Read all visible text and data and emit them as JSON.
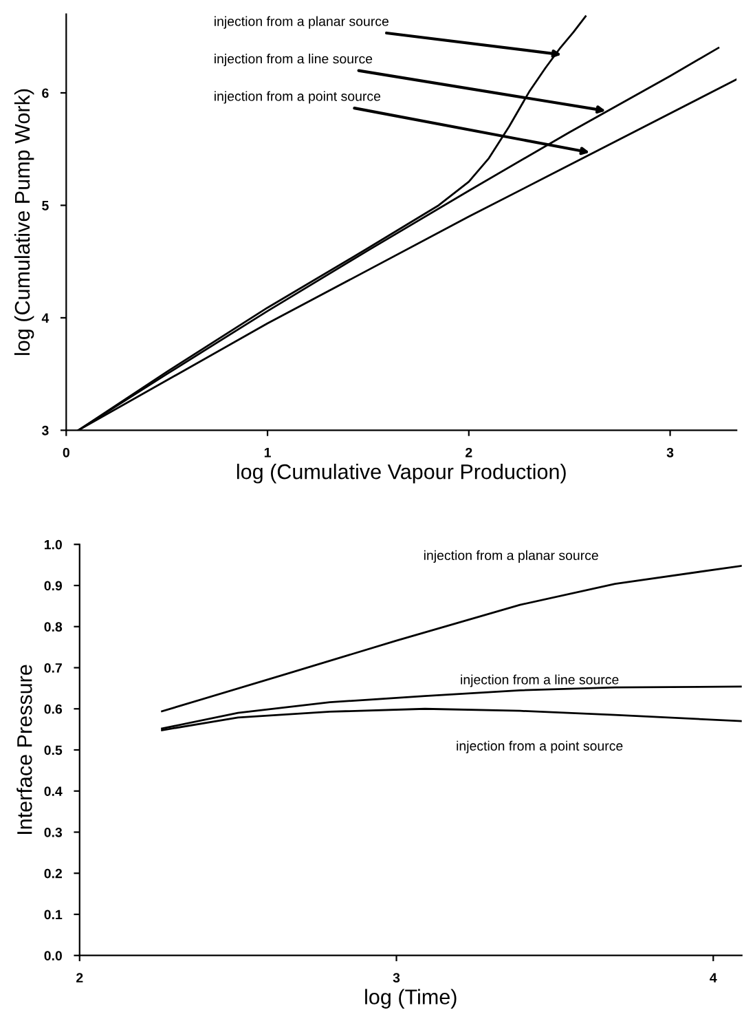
{
  "chart_data": [
    {
      "type": "line",
      "xlabel": "log (Cumulative Vapour Production)",
      "ylabel": "log (Cumulative Pump Work)",
      "xlim": [
        0,
        3.33
      ],
      "ylim": [
        3,
        6.7
      ],
      "xticks": [
        0,
        1,
        2,
        3
      ],
      "yticks": [
        3,
        4,
        5,
        6
      ],
      "grid": false,
      "legend": false,
      "marker": "none",
      "line_style": "solid",
      "series": [
        {
          "color": "#000000",
          "x": [
            0.06,
            0.5,
            1.0,
            1.5,
            1.73,
            1.85,
            2.0,
            2.1,
            2.2,
            2.3,
            2.38,
            2.45,
            2.52,
            2.58
          ],
          "values": [
            3.0,
            3.52,
            4.09,
            4.62,
            4.87,
            5.0,
            5.21,
            5.42,
            5.7,
            6.01,
            6.22,
            6.39,
            6.54,
            6.68
          ]
        },
        {
          "color": "#000000",
          "x": [
            0.06,
            0.5,
            1.0,
            1.5,
            2.0,
            2.5,
            3.0,
            3.24
          ],
          "values": [
            3.0,
            3.5,
            4.06,
            4.6,
            5.13,
            5.65,
            6.15,
            6.4
          ]
        },
        {
          "color": "#000000",
          "x": [
            0.06,
            1.0,
            2.0,
            3.33
          ],
          "values": [
            3.0,
            3.95,
            4.9,
            6.12
          ]
        }
      ],
      "annotations": [
        {
          "text": "injection from a planar source",
          "x": 2.46,
          "y": 6.34
        },
        {
          "text": "injection from a line source",
          "x": 2.68,
          "y": 5.84
        },
        {
          "text": "injection from a point source",
          "x": 2.6,
          "y": 5.47
        }
      ]
    },
    {
      "type": "line",
      "xlabel": "log (Time)",
      "ylabel": "Interface Pressure",
      "xlim": [
        2,
        4.09
      ],
      "ylim": [
        0,
        1.0
      ],
      "xticks": [
        2,
        3,
        4
      ],
      "yticks": [
        {
          "value": 0,
          "label": "0.0"
        },
        0.1,
        0.2,
        0.3,
        0.4,
        0.5,
        0.6,
        0.7,
        0.8,
        0.9,
        {
          "value": 1.0,
          "label": "1.0"
        }
      ],
      "grid": false,
      "legend": false,
      "marker": "none",
      "line_style": "solid",
      "series": [
        {
          "name": "injection from a planar source",
          "color": "#000000",
          "x": [
            2.26,
            2.645,
            3.0,
            3.39,
            3.69,
            4.09
          ],
          "values": [
            0.594,
            0.683,
            0.766,
            0.853,
            0.904,
            0.948
          ]
        },
        {
          "name": "injection from a line source",
          "color": "#000000",
          "x": [
            2.26,
            2.5,
            2.79,
            3.09,
            3.39,
            3.69,
            4.09
          ],
          "values": [
            0.552,
            0.59,
            0.616,
            0.631,
            0.645,
            0.652,
            0.654
          ]
        },
        {
          "name": "injection from a point source",
          "color": "#000000",
          "x": [
            2.26,
            2.5,
            2.79,
            3.09,
            3.39,
            3.69,
            4.09
          ],
          "values": [
            0.548,
            0.579,
            0.593,
            0.6,
            0.595,
            0.585,
            0.57
          ]
        }
      ]
    }
  ]
}
